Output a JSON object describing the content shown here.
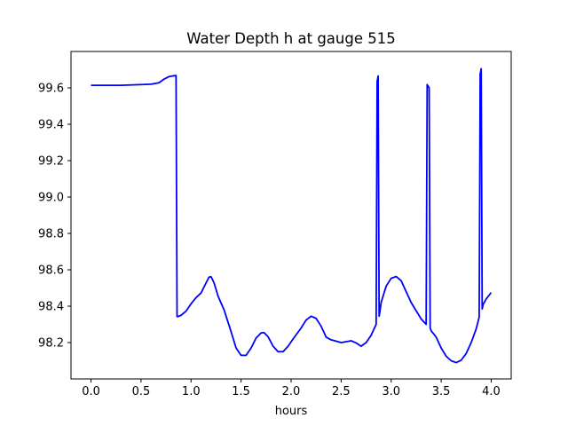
{
  "chart_data": {
    "type": "line",
    "title": "Water Depth h at gauge 515",
    "xlabel": "hours",
    "ylabel": "",
    "xlim": [
      -0.2,
      4.2
    ],
    "ylim": [
      98.0,
      99.8
    ],
    "xticks": [
      0.0,
      0.5,
      1.0,
      1.5,
      2.0,
      2.5,
      3.0,
      3.5,
      4.0
    ],
    "xtick_labels": [
      "0.0",
      "0.5",
      "1.0",
      "1.5",
      "2.0",
      "2.5",
      "3.0",
      "3.5",
      "4.0"
    ],
    "yticks": [
      98.2,
      98.4,
      98.6,
      98.8,
      99.0,
      99.2,
      99.4,
      99.6
    ],
    "ytick_labels": [
      "98.2",
      "98.4",
      "98.6",
      "98.8",
      "99.0",
      "99.2",
      "99.4",
      "99.6"
    ],
    "grid": false,
    "color": "#0000ff",
    "x": [
      0.0,
      0.3,
      0.6,
      0.68,
      0.73,
      0.78,
      0.85,
      0.86,
      0.87,
      0.9,
      0.95,
      1.0,
      1.05,
      1.1,
      1.15,
      1.18,
      1.2,
      1.23,
      1.27,
      1.33,
      1.4,
      1.45,
      1.5,
      1.55,
      1.6,
      1.65,
      1.7,
      1.73,
      1.77,
      1.82,
      1.87,
      1.92,
      1.97,
      2.02,
      2.1,
      2.15,
      2.2,
      2.25,
      2.3,
      2.35,
      2.4,
      2.5,
      2.6,
      2.65,
      2.7,
      2.75,
      2.8,
      2.85,
      2.86,
      2.87,
      2.88,
      2.89,
      2.9,
      2.95,
      3.0,
      3.05,
      3.1,
      3.15,
      3.2,
      3.3,
      3.35,
      3.36,
      3.38,
      3.39,
      3.4,
      3.45,
      3.5,
      3.55,
      3.6,
      3.65,
      3.7,
      3.75,
      3.8,
      3.85,
      3.88,
      3.89,
      3.9,
      3.91,
      3.92,
      3.95,
      4.0
    ],
    "y": [
      99.614,
      99.614,
      99.62,
      99.628,
      99.648,
      99.662,
      99.668,
      98.343,
      98.343,
      98.35,
      98.373,
      98.413,
      98.447,
      98.473,
      98.528,
      98.56,
      98.562,
      98.528,
      98.455,
      98.38,
      98.26,
      98.17,
      98.13,
      98.13,
      98.17,
      98.225,
      98.253,
      98.255,
      98.232,
      98.18,
      98.15,
      98.15,
      98.18,
      98.22,
      98.28,
      98.324,
      98.345,
      98.333,
      98.29,
      98.23,
      98.215,
      98.2,
      98.21,
      98.198,
      98.18,
      98.2,
      98.24,
      98.3,
      99.635,
      99.665,
      98.345,
      98.38,
      98.42,
      98.51,
      98.553,
      98.563,
      98.54,
      98.48,
      98.42,
      98.33,
      98.3,
      99.618,
      99.6,
      98.28,
      98.265,
      98.23,
      98.17,
      98.125,
      98.1,
      98.09,
      98.103,
      98.14,
      98.2,
      98.275,
      98.34,
      99.675,
      99.705,
      98.385,
      98.41,
      98.44,
      98.475
    ]
  }
}
